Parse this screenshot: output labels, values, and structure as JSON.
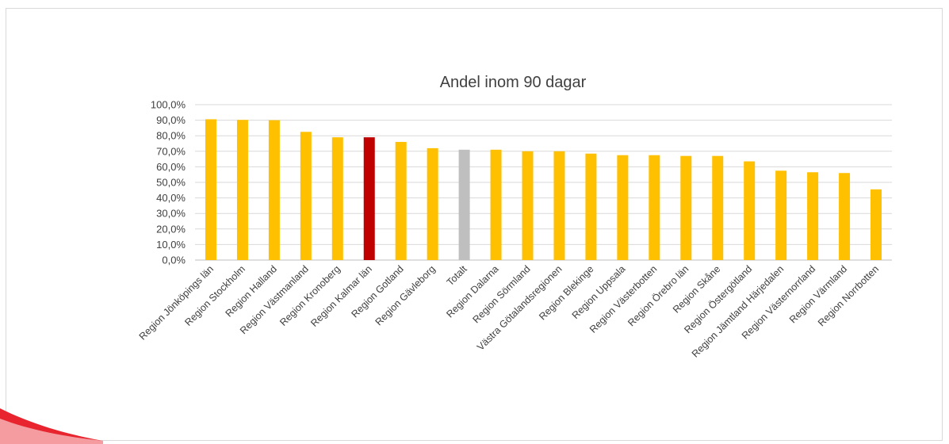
{
  "chart_data": {
    "type": "bar",
    "title": "Andel inom 90 dagar",
    "xlabel": "",
    "ylabel": "",
    "ylim": [
      0,
      100
    ],
    "y_ticks": [
      "0,0%",
      "10,0%",
      "20,0%",
      "30,0%",
      "40,0%",
      "50,0%",
      "60,0%",
      "70,0%",
      "80,0%",
      "90,0%",
      "100,0%"
    ],
    "grid": true,
    "legend": "none",
    "categories": [
      "Region Jönköpings län",
      "Region Stockholm",
      "Region Halland",
      "Region Västmanland",
      "Region Kronoberg",
      "Region Kalmar län",
      "Region Gotland",
      "Region Gävleborg",
      "Totalt",
      "Region Dalarna",
      "Region Sörmland",
      "Västra Götalandsregionen",
      "Region Blekinge",
      "Region Uppsala",
      "Region Västerbotten",
      "Region Örebro län",
      "Region Skåne",
      "Region Östergötland",
      "Region Jämtland Härjedalen",
      "Region Västernorrland",
      "Region Värmland",
      "Region Norrbotten"
    ],
    "values": [
      90.6,
      90.2,
      90.0,
      82.5,
      79.0,
      79.0,
      76.0,
      72.0,
      71.0,
      71.0,
      70.0,
      70.0,
      68.5,
      67.5,
      67.5,
      67.0,
      67.0,
      63.5,
      57.5,
      56.5,
      56.0,
      45.5
    ],
    "colors": {
      "default": "#FFC000",
      "highlight": "#C00000",
      "total": "#BFBFBF",
      "grid": "#D9D9D9",
      "axis": "#BFBFBF",
      "corner_accent": "#E8252E"
    },
    "highlight_category": "Region Kalmar län",
    "total_category": "Totalt"
  }
}
